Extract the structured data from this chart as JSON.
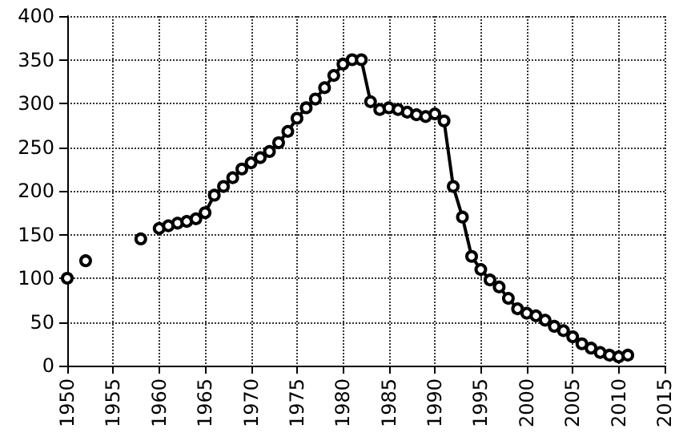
{
  "chart_data": {
    "type": "line",
    "marker": "circle",
    "line_style": "solid",
    "grid": true,
    "x": [
      1950,
      1951,
      1952,
      1953,
      1954,
      1955,
      1956,
      1957,
      1958,
      1959,
      1960,
      1961,
      1962,
      1963,
      1964,
      1965,
      1966,
      1967,
      1968,
      1969,
      1970,
      1971,
      1972,
      1973,
      1974,
      1975,
      1976,
      1977,
      1978,
      1979,
      1980,
      1981,
      1982,
      1983,
      1984,
      1985,
      1986,
      1987,
      1988,
      1989,
      1990,
      1991,
      1992,
      1993,
      1994,
      1995,
      1996,
      1997,
      1998,
      1999,
      2000,
      2001,
      2002,
      2003,
      2004,
      2005,
      2006,
      2007,
      2008,
      2009,
      2010,
      2011
    ],
    "series": [
      {
        "color": "#000000",
        "values": [
          100,
          null,
          120,
          null,
          null,
          null,
          null,
          null,
          145,
          null,
          157,
          160,
          163,
          165,
          168,
          175,
          195,
          205,
          215,
          225,
          232,
          238,
          245,
          255,
          268,
          283,
          295,
          305,
          318,
          332,
          345,
          350,
          350,
          302,
          293,
          295,
          293,
          290,
          287,
          285,
          288,
          280,
          205,
          170,
          125,
          110,
          98,
          90,
          77,
          65,
          60,
          57,
          52,
          45,
          40,
          33,
          25,
          20,
          15,
          12,
          10,
          12
        ]
      }
    ],
    "xlim": [
      1950,
      2015
    ],
    "xticks": [
      1950,
      1955,
      1960,
      1965,
      1970,
      1975,
      1980,
      1985,
      1990,
      1995,
      2000,
      2005,
      2010,
      2015
    ],
    "ylim": [
      0,
      400
    ],
    "yticks": [
      0,
      50,
      100,
      150,
      200,
      250,
      300,
      350,
      400
    ]
  }
}
